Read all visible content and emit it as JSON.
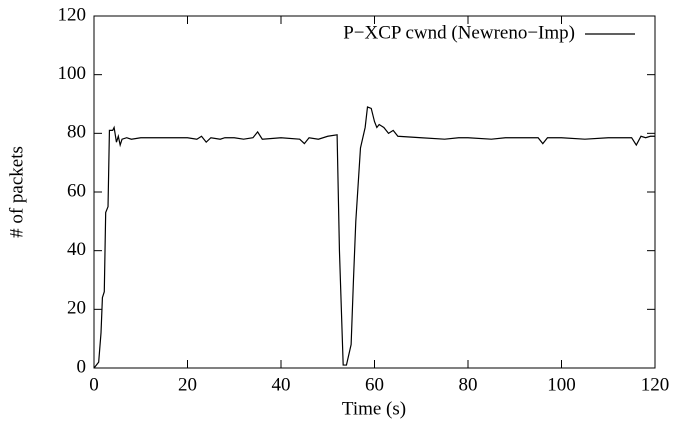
{
  "chart_data": {
    "type": "line",
    "x_label": "Time (s)",
    "y_label": "# of packets",
    "x": [
      0,
      0.5,
      1,
      1.5,
      1.8,
      2.2,
      2.5,
      3,
      3.3,
      4,
      4.3,
      4.8,
      5.2,
      5.6,
      6,
      7,
      8,
      10,
      15,
      20,
      22,
      23,
      24,
      25,
      27,
      28,
      30,
      32,
      34,
      35,
      36,
      40,
      44,
      45,
      46,
      48,
      50,
      52,
      52.5,
      53.3,
      54,
      55,
      55.5,
      56,
      57,
      58,
      58.5,
      59.3,
      60,
      60.5,
      61,
      62,
      63,
      64,
      65,
      70,
      75,
      78,
      80,
      85,
      88,
      90,
      95,
      96,
      97,
      100,
      105,
      110,
      115,
      116,
      117,
      118,
      119,
      120
    ],
    "series": [
      {
        "name": "P−XCP cwnd (Newreno−Imp)",
        "color": "#000000",
        "values": [
          0,
          1,
          2,
          12,
          24,
          26,
          53,
          55,
          81,
          81,
          82,
          77,
          79,
          76,
          78,
          78.5,
          78,
          78.5,
          78.5,
          78.5,
          78,
          79,
          77,
          78.5,
          78,
          78.5,
          78.5,
          78,
          78.5,
          80.5,
          78,
          78.5,
          78,
          76.5,
          78.5,
          78,
          79,
          79.5,
          40,
          1,
          1,
          8,
          30,
          50,
          75,
          82,
          89,
          88.5,
          84,
          82,
          83,
          82,
          80,
          81,
          79,
          78.5,
          78,
          78.5,
          78.5,
          78,
          78.5,
          78.5,
          78.5,
          76.5,
          78.5,
          78.5,
          78,
          78.5,
          78.5,
          76,
          79,
          78.5,
          79,
          79
        ]
      }
    ],
    "xlim": [
      0,
      120
    ],
    "xticks": [
      0,
      20,
      40,
      60,
      80,
      100,
      120
    ],
    "ylim": [
      0,
      120
    ],
    "yticks": [
      0,
      20,
      40,
      60,
      80,
      100,
      120
    ],
    "legend": "top-right"
  }
}
